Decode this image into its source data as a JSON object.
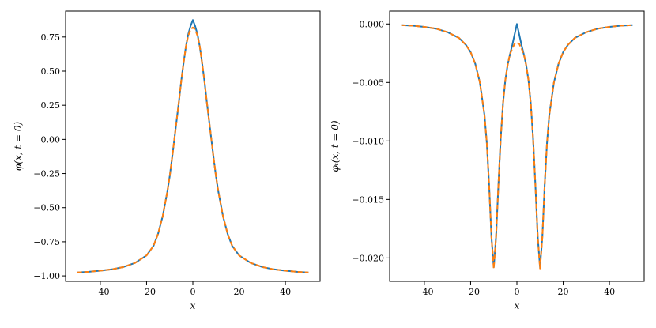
{
  "chart_data": [
    {
      "type": "line",
      "xlabel": "x",
      "ylabel": "φ(x, t = 0)",
      "xlim": [
        -55,
        55
      ],
      "ylim": [
        -1.04,
        0.94
      ],
      "xticks": [
        -40,
        -20,
        0,
        20,
        40
      ],
      "xtick_labels": [
        "−40",
        "−20",
        "0",
        "20",
        "40"
      ],
      "yticks": [
        -1.0,
        -0.75,
        -0.5,
        -0.25,
        0.0,
        0.25,
        0.5,
        0.75
      ],
      "ytick_labels": [
        "−1.00",
        "−0.75",
        "−0.50",
        "−0.25",
        "0.00",
        "0.25",
        "0.50",
        "0.75"
      ],
      "series": [
        {
          "color": "#1f77b4",
          "dash": "solid",
          "x": [
            -50,
            -45,
            -40,
            -35,
            -30,
            -25,
            -20,
            -17,
            -15,
            -13,
            -11,
            -10,
            -9,
            -8,
            -7,
            -6,
            -5,
            -4,
            -3,
            -2,
            -1,
            0,
            1,
            2,
            3,
            4,
            5,
            6,
            7,
            8,
            9,
            10,
            11,
            13,
            15,
            17,
            20,
            25,
            30,
            35,
            40,
            45,
            50
          ],
          "y": [
            -0.975,
            -0.97,
            -0.962,
            -0.952,
            -0.935,
            -0.905,
            -0.85,
            -0.78,
            -0.69,
            -0.56,
            -0.38,
            -0.27,
            -0.14,
            0.0,
            0.14,
            0.28,
            0.43,
            0.56,
            0.68,
            0.77,
            0.83,
            0.875,
            0.83,
            0.77,
            0.68,
            0.56,
            0.43,
            0.28,
            0.14,
            0.0,
            -0.14,
            -0.27,
            -0.38,
            -0.56,
            -0.69,
            -0.78,
            -0.85,
            -0.905,
            -0.935,
            -0.952,
            -0.962,
            -0.97,
            -0.975
          ]
        },
        {
          "color": "#ff7f0e",
          "dash": "dashed",
          "x": [
            -50,
            -45,
            -40,
            -35,
            -30,
            -25,
            -20,
            -17,
            -15,
            -13,
            -11,
            -10,
            -9,
            -8,
            -7,
            -6,
            -5,
            -4,
            -3,
            -2,
            -1,
            0,
            1,
            2,
            3,
            4,
            5,
            6,
            7,
            8,
            9,
            10,
            11,
            13,
            15,
            17,
            20,
            25,
            30,
            35,
            40,
            45,
            50
          ],
          "y": [
            -0.975,
            -0.97,
            -0.962,
            -0.952,
            -0.935,
            -0.905,
            -0.85,
            -0.78,
            -0.69,
            -0.56,
            -0.38,
            -0.27,
            -0.14,
            0.0,
            0.14,
            0.28,
            0.43,
            0.56,
            0.68,
            0.76,
            0.805,
            0.82,
            0.805,
            0.76,
            0.68,
            0.56,
            0.43,
            0.28,
            0.14,
            0.0,
            -0.14,
            -0.27,
            -0.38,
            -0.56,
            -0.69,
            -0.78,
            -0.85,
            -0.905,
            -0.935,
            -0.952,
            -0.962,
            -0.97,
            -0.975
          ]
        }
      ]
    },
    {
      "type": "line",
      "xlabel": "x",
      "ylabel": "φₜ(x, t = 0)",
      "xlim": [
        -55,
        55
      ],
      "ylim": [
        -0.022,
        0.0011
      ],
      "xticks": [
        -40,
        -20,
        0,
        20,
        40
      ],
      "xtick_labels": [
        "−40",
        "−20",
        "0",
        "20",
        "40"
      ],
      "yticks": [
        0.0,
        -0.005,
        -0.01,
        -0.015,
        -0.02
      ],
      "ytick_labels": [
        "0.000",
        "−0.005",
        "−0.010",
        "−0.015",
        "−0.020"
      ],
      "series": [
        {
          "color": "#1f77b4",
          "dash": "solid",
          "x": [
            -50,
            -45,
            -40,
            -35,
            -30,
            -25,
            -22,
            -20,
            -18,
            -16,
            -14,
            -13,
            -12,
            -11,
            -10,
            -9,
            -8,
            -7,
            -6,
            -5,
            -4,
            -3,
            -2,
            -1,
            0,
            1,
            2,
            3,
            4,
            5,
            6,
            7,
            8,
            9,
            10,
            11,
            12,
            13,
            14,
            16,
            18,
            20,
            22,
            25,
            30,
            35,
            40,
            45,
            50
          ],
          "y": [
            -0.0001,
            -0.00015,
            -0.00025,
            -0.0004,
            -0.0007,
            -0.0012,
            -0.0018,
            -0.0024,
            -0.0034,
            -0.005,
            -0.0078,
            -0.0102,
            -0.0138,
            -0.0182,
            -0.0208,
            -0.0182,
            -0.0138,
            -0.0098,
            -0.0068,
            -0.0048,
            -0.0035,
            -0.0026,
            -0.0018,
            -0.0009,
            0.0,
            -0.0009,
            -0.0018,
            -0.0026,
            -0.0035,
            -0.0048,
            -0.0068,
            -0.0098,
            -0.0138,
            -0.0182,
            -0.0208,
            -0.0182,
            -0.0138,
            -0.0102,
            -0.0078,
            -0.005,
            -0.0034,
            -0.0024,
            -0.0018,
            -0.0012,
            -0.0007,
            -0.0004,
            -0.00025,
            -0.00015,
            -0.0001
          ]
        },
        {
          "color": "#ff7f0e",
          "dash": "dashed",
          "x": [
            -50,
            -45,
            -40,
            -35,
            -30,
            -25,
            -22,
            -20,
            -18,
            -16,
            -14,
            -13,
            -12,
            -11,
            -10,
            -9,
            -8,
            -7,
            -6,
            -5,
            -4,
            -3,
            -2,
            -1,
            0,
            1,
            2,
            3,
            4,
            5,
            6,
            7,
            8,
            9,
            10,
            11,
            12,
            13,
            14,
            16,
            18,
            20,
            22,
            25,
            30,
            35,
            40,
            45,
            50
          ],
          "y": [
            -0.0001,
            -0.00015,
            -0.00025,
            -0.0004,
            -0.0007,
            -0.0012,
            -0.0018,
            -0.0024,
            -0.0034,
            -0.005,
            -0.0078,
            -0.0102,
            -0.0138,
            -0.0182,
            -0.0209,
            -0.0182,
            -0.0138,
            -0.0098,
            -0.0068,
            -0.0048,
            -0.0035,
            -0.0026,
            -0.0021,
            -0.0017,
            -0.0016,
            -0.0017,
            -0.0021,
            -0.0026,
            -0.0035,
            -0.0048,
            -0.0068,
            -0.0098,
            -0.0138,
            -0.0182,
            -0.0209,
            -0.0182,
            -0.0138,
            -0.0102,
            -0.0078,
            -0.005,
            -0.0034,
            -0.0024,
            -0.0018,
            -0.0012,
            -0.0007,
            -0.0004,
            -0.00025,
            -0.00015,
            -0.0001
          ]
        }
      ]
    }
  ]
}
